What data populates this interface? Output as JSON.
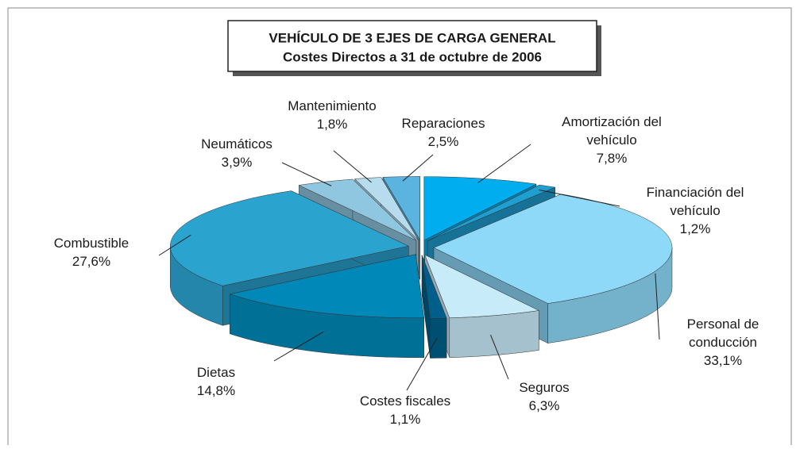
{
  "chart_data": {
    "type": "pie",
    "title": "VEHÍCULO DE 3 EJES DE CARGA GENERAL",
    "subtitle": "Costes Directos a 31 de octubre de 2006",
    "categories": [
      "Amortización del vehículo",
      "Financiación del vehículo",
      "Personal de conducción",
      "Seguros",
      "Costes fiscales",
      "Dietas",
      "Combustible",
      "Neumáticos",
      "Mantenimiento",
      "Reparaciones"
    ],
    "values": [
      7.8,
      1.2,
      33.1,
      6.3,
      1.1,
      14.8,
      27.6,
      3.9,
      1.8,
      2.5
    ],
    "value_labels": [
      "7,8%",
      "1,2%",
      "33,1%",
      "6,3%",
      "1,1%",
      "14,8%",
      "27,6%",
      "3,9%",
      "1,8%",
      "2,5%"
    ],
    "colors": [
      "#00aeef",
      "#1e9fd0",
      "#8ed8f8",
      "#c8ebfa",
      "#005f8a",
      "#0088b8",
      "#2ba3cf",
      "#8fc6e0",
      "#b6dcee",
      "#5ab4df"
    ]
  }
}
